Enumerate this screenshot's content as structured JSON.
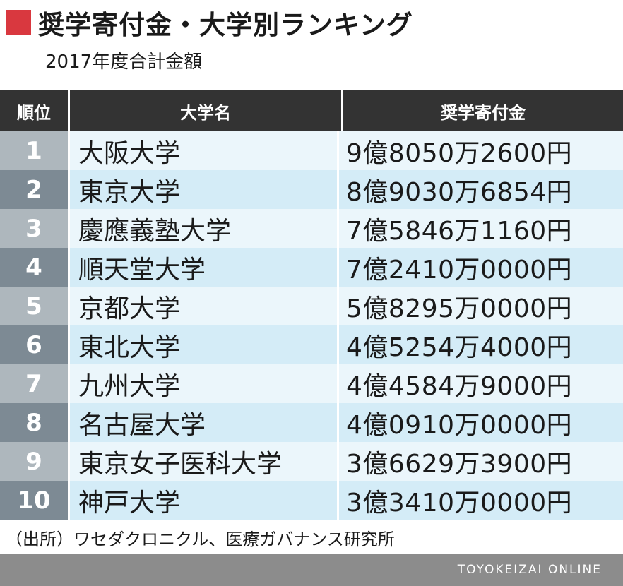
{
  "header": {
    "title": "奨学寄付金・大学別ランキング",
    "subtitle": "2017年度合計金額",
    "accent_color": "#d9383f"
  },
  "chart_data": {
    "type": "table",
    "columns": [
      "順位",
      "大学名",
      "奨学寄付金"
    ],
    "rows": [
      {
        "rank": "1",
        "university": "大阪大学",
        "amount": "9億8050万2600円"
      },
      {
        "rank": "2",
        "university": "東京大学",
        "amount": "8億9030万6854円"
      },
      {
        "rank": "3",
        "university": "慶應義塾大学",
        "amount": "7億5846万1160円"
      },
      {
        "rank": "4",
        "university": "順天堂大学",
        "amount": "7億2410万0000円"
      },
      {
        "rank": "5",
        "university": "京都大学",
        "amount": "5億8295万0000円"
      },
      {
        "rank": "6",
        "university": "東北大学",
        "amount": "4億5254万4000円"
      },
      {
        "rank": "7",
        "university": "九州大学",
        "amount": "4億4584万9000円"
      },
      {
        "rank": "8",
        "university": "名古屋大学",
        "amount": "4億0910万0000円"
      },
      {
        "rank": "9",
        "university": "東京女子医科大学",
        "amount": "3億6629万3900円"
      },
      {
        "rank": "10",
        "university": "神戸大学",
        "amount": "3億3410万0000円"
      }
    ]
  },
  "source": "（出所）ワセダクロニクル、医療ガバナンス研究所",
  "footer": {
    "brand": "TOYOKEIZAI ONLINE"
  }
}
